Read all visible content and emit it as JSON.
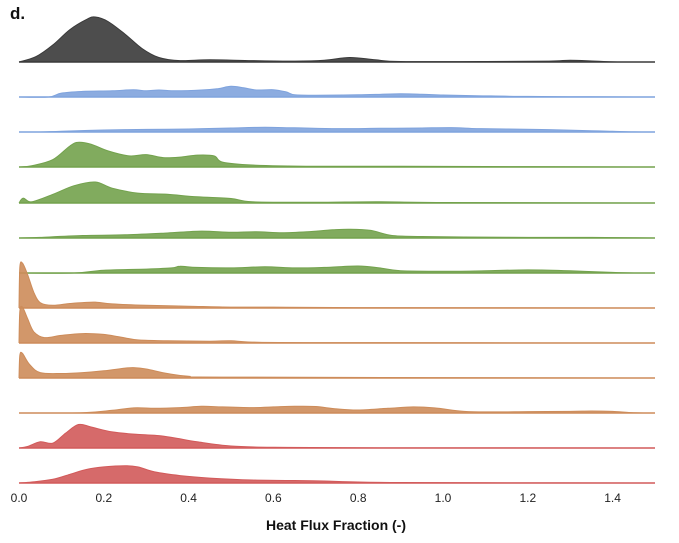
{
  "panel_label": "d.",
  "chart_data": {
    "type": "area",
    "chart_kind": "ridgeline density plot",
    "title": "",
    "xlabel": "Heat Flux Fraction (-)",
    "ylabel": "",
    "xlim": [
      0.0,
      1.5
    ],
    "xticks": [
      0.0,
      0.2,
      0.4,
      0.6,
      0.8,
      1.0,
      1.2,
      1.4
    ],
    "xtick_labels": [
      "0.0",
      "0.2",
      "0.4",
      "0.6",
      "0.8",
      "1.0",
      "1.2",
      "1.4"
    ],
    "grid": false,
    "legend": "none",
    "series": [
      {
        "color": "#3a3a3a",
        "peak": 1.0,
        "points": [
          [
            0.0,
            0.0
          ],
          [
            0.04,
            0.12
          ],
          [
            0.08,
            0.38
          ],
          [
            0.12,
            0.72
          ],
          [
            0.16,
            0.95
          ],
          [
            0.18,
            1.0
          ],
          [
            0.21,
            0.9
          ],
          [
            0.25,
            0.62
          ],
          [
            0.29,
            0.3
          ],
          [
            0.33,
            0.1
          ],
          [
            0.38,
            0.03
          ],
          [
            0.45,
            0.05
          ],
          [
            0.55,
            0.03
          ],
          [
            0.65,
            0.02
          ],
          [
            0.72,
            0.04
          ],
          [
            0.78,
            0.1
          ],
          [
            0.84,
            0.05
          ],
          [
            0.9,
            0.01
          ],
          [
            1.1,
            0.01
          ],
          [
            1.25,
            0.02
          ],
          [
            1.3,
            0.04
          ],
          [
            1.36,
            0.02
          ],
          [
            1.42,
            0.0
          ]
        ]
      },
      {
        "color": "#7fa3dd",
        "peak": 0.25,
        "points": [
          [
            0.0,
            0.0
          ],
          [
            0.07,
            0.0
          ],
          [
            0.1,
            0.35
          ],
          [
            0.15,
            0.5
          ],
          [
            0.22,
            0.55
          ],
          [
            0.27,
            0.65
          ],
          [
            0.3,
            0.55
          ],
          [
            0.33,
            0.62
          ],
          [
            0.37,
            0.55
          ],
          [
            0.43,
            0.62
          ],
          [
            0.47,
            0.75
          ],
          [
            0.5,
            0.95
          ],
          [
            0.53,
            0.82
          ],
          [
            0.56,
            0.62
          ],
          [
            0.6,
            0.65
          ],
          [
            0.63,
            0.45
          ],
          [
            0.65,
            0.2
          ],
          [
            0.7,
            0.15
          ],
          [
            0.8,
            0.2
          ],
          [
            0.9,
            0.28
          ],
          [
            0.95,
            0.25
          ],
          [
            1.0,
            0.18
          ],
          [
            1.08,
            0.12
          ],
          [
            1.2,
            0.05
          ],
          [
            1.35,
            0.02
          ],
          [
            1.5,
            0.0
          ]
        ]
      },
      {
        "color": "#7fa3dd",
        "peak": 0.15,
        "points": [
          [
            0.0,
            0.0
          ],
          [
            0.05,
            0.0
          ],
          [
            0.1,
            0.12
          ],
          [
            0.2,
            0.3
          ],
          [
            0.3,
            0.38
          ],
          [
            0.4,
            0.45
          ],
          [
            0.5,
            0.6
          ],
          [
            0.58,
            0.7
          ],
          [
            0.65,
            0.62
          ],
          [
            0.75,
            0.5
          ],
          [
            0.85,
            0.55
          ],
          [
            0.95,
            0.6
          ],
          [
            1.02,
            0.65
          ],
          [
            1.08,
            0.5
          ],
          [
            1.15,
            0.45
          ],
          [
            1.25,
            0.35
          ],
          [
            1.35,
            0.2
          ],
          [
            1.4,
            0.1
          ],
          [
            1.45,
            0.02
          ],
          [
            1.5,
            0.0
          ]
        ]
      },
      {
        "color": "#73a24d",
        "peak": 0.55,
        "points": [
          [
            0.0,
            0.0
          ],
          [
            0.03,
            0.05
          ],
          [
            0.08,
            0.3
          ],
          [
            0.12,
            0.85
          ],
          [
            0.14,
            1.0
          ],
          [
            0.17,
            0.92
          ],
          [
            0.21,
            0.65
          ],
          [
            0.26,
            0.45
          ],
          [
            0.3,
            0.5
          ],
          [
            0.34,
            0.38
          ],
          [
            0.38,
            0.4
          ],
          [
            0.42,
            0.48
          ],
          [
            0.46,
            0.45
          ],
          [
            0.48,
            0.2
          ],
          [
            0.55,
            0.08
          ],
          [
            0.7,
            0.03
          ],
          [
            0.9,
            0.03
          ],
          [
            1.1,
            0.02
          ],
          [
            1.3,
            0.01
          ],
          [
            1.5,
            0.0
          ]
        ]
      },
      {
        "color": "#73a24d",
        "peak": 0.55,
        "points": [
          [
            0.0,
            0.0
          ],
          [
            0.01,
            0.2
          ],
          [
            0.03,
            0.05
          ],
          [
            0.08,
            0.35
          ],
          [
            0.13,
            0.7
          ],
          [
            0.18,
            0.85
          ],
          [
            0.22,
            0.6
          ],
          [
            0.28,
            0.4
          ],
          [
            0.35,
            0.35
          ],
          [
            0.42,
            0.25
          ],
          [
            0.5,
            0.18
          ],
          [
            0.55,
            0.05
          ],
          [
            0.7,
            0.03
          ],
          [
            0.85,
            0.05
          ],
          [
            1.0,
            0.02
          ],
          [
            1.5,
            0.0
          ]
        ]
      },
      {
        "color": "#73a24d",
        "peak": 0.28,
        "points": [
          [
            0.0,
            0.0
          ],
          [
            0.05,
            0.05
          ],
          [
            0.15,
            0.2
          ],
          [
            0.25,
            0.25
          ],
          [
            0.35,
            0.4
          ],
          [
            0.43,
            0.55
          ],
          [
            0.5,
            0.45
          ],
          [
            0.56,
            0.5
          ],
          [
            0.62,
            0.42
          ],
          [
            0.68,
            0.5
          ],
          [
            0.74,
            0.65
          ],
          [
            0.78,
            0.7
          ],
          [
            0.83,
            0.6
          ],
          [
            0.88,
            0.2
          ],
          [
            0.95,
            0.12
          ],
          [
            1.05,
            0.08
          ],
          [
            1.2,
            0.05
          ],
          [
            1.35,
            0.05
          ],
          [
            1.45,
            0.02
          ],
          [
            1.5,
            0.0
          ]
        ]
      },
      {
        "color": "#73a24d",
        "peak": 0.25,
        "points": [
          [
            0.0,
            0.0
          ],
          [
            0.13,
            0.0
          ],
          [
            0.2,
            0.25
          ],
          [
            0.3,
            0.35
          ],
          [
            0.36,
            0.45
          ],
          [
            0.38,
            0.6
          ],
          [
            0.42,
            0.5
          ],
          [
            0.5,
            0.45
          ],
          [
            0.58,
            0.55
          ],
          [
            0.65,
            0.45
          ],
          [
            0.72,
            0.5
          ],
          [
            0.8,
            0.62
          ],
          [
            0.85,
            0.45
          ],
          [
            0.9,
            0.2
          ],
          [
            1.0,
            0.15
          ],
          [
            1.1,
            0.2
          ],
          [
            1.2,
            0.28
          ],
          [
            1.3,
            0.2
          ],
          [
            1.4,
            0.05
          ],
          [
            1.45,
            0.0
          ],
          [
            1.5,
            0.0
          ]
        ]
      },
      {
        "color": "#cd8c5a",
        "peak": 1.0,
        "points": [
          [
            0.0,
            0.0
          ],
          [
            0.002,
            0.9
          ],
          [
            0.008,
            1.0
          ],
          [
            0.02,
            0.75
          ],
          [
            0.035,
            0.35
          ],
          [
            0.05,
            0.12
          ],
          [
            0.08,
            0.06
          ],
          [
            0.12,
            0.1
          ],
          [
            0.15,
            0.12
          ],
          [
            0.18,
            0.13
          ],
          [
            0.22,
            0.09
          ],
          [
            0.3,
            0.06
          ],
          [
            0.4,
            0.04
          ],
          [
            0.5,
            0.02
          ],
          [
            0.6,
            0.02
          ],
          [
            0.8,
            0.01
          ],
          [
            1.5,
            0.0
          ]
        ]
      },
      {
        "color": "#cd8c5a",
        "peak": 1.0,
        "points": [
          [
            0.0,
            0.0
          ],
          [
            0.002,
            0.7
          ],
          [
            0.008,
            0.8
          ],
          [
            0.02,
            0.55
          ],
          [
            0.035,
            0.25
          ],
          [
            0.06,
            0.12
          ],
          [
            0.1,
            0.17
          ],
          [
            0.15,
            0.21
          ],
          [
            0.2,
            0.19
          ],
          [
            0.24,
            0.13
          ],
          [
            0.28,
            0.07
          ],
          [
            0.35,
            0.05
          ],
          [
            0.45,
            0.04
          ],
          [
            0.5,
            0.05
          ],
          [
            0.55,
            0.02
          ],
          [
            0.7,
            0.01
          ],
          [
            1.5,
            0.0
          ]
        ]
      },
      {
        "color": "#cd8c5a",
        "peak": 1.0,
        "points": [
          [
            0.0,
            0.0
          ],
          [
            0.002,
            0.5
          ],
          [
            0.008,
            0.55
          ],
          [
            0.025,
            0.3
          ],
          [
            0.05,
            0.12
          ],
          [
            0.1,
            0.1
          ],
          [
            0.15,
            0.12
          ],
          [
            0.2,
            0.16
          ],
          [
            0.25,
            0.22
          ],
          [
            0.27,
            0.23
          ],
          [
            0.3,
            0.2
          ],
          [
            0.35,
            0.1
          ],
          [
            0.4,
            0.04
          ],
          [
            0.5,
            0.02
          ],
          [
            1.5,
            0.0
          ]
        ]
      },
      {
        "color": "#cd8c5a",
        "peak": 0.3,
        "points": [
          [
            0.0,
            0.0
          ],
          [
            0.15,
            0.02
          ],
          [
            0.22,
            0.2
          ],
          [
            0.27,
            0.38
          ],
          [
            0.32,
            0.35
          ],
          [
            0.38,
            0.4
          ],
          [
            0.43,
            0.5
          ],
          [
            0.48,
            0.45
          ],
          [
            0.55,
            0.4
          ],
          [
            0.6,
            0.45
          ],
          [
            0.65,
            0.5
          ],
          [
            0.7,
            0.48
          ],
          [
            0.75,
            0.3
          ],
          [
            0.8,
            0.22
          ],
          [
            0.87,
            0.35
          ],
          [
            0.93,
            0.45
          ],
          [
            0.98,
            0.38
          ],
          [
            1.05,
            0.12
          ],
          [
            1.12,
            0.08
          ],
          [
            1.2,
            0.1
          ],
          [
            1.3,
            0.12
          ],
          [
            1.35,
            0.15
          ],
          [
            1.4,
            0.12
          ],
          [
            1.45,
            0.02
          ],
          [
            1.5,
            0.0
          ]
        ]
      },
      {
        "color": "#d25a5a",
        "peak": 0.55,
        "points": [
          [
            0.0,
            0.0
          ],
          [
            0.02,
            0.06
          ],
          [
            0.05,
            0.25
          ],
          [
            0.08,
            0.2
          ],
          [
            0.11,
            0.6
          ],
          [
            0.14,
            0.95
          ],
          [
            0.17,
            0.85
          ],
          [
            0.22,
            0.65
          ],
          [
            0.28,
            0.55
          ],
          [
            0.33,
            0.5
          ],
          [
            0.37,
            0.4
          ],
          [
            0.42,
            0.25
          ],
          [
            0.5,
            0.08
          ],
          [
            0.6,
            0.03
          ],
          [
            0.8,
            0.01
          ],
          [
            1.5,
            0.0
          ]
        ]
      },
      {
        "color": "#d25a5a",
        "peak": 0.55,
        "points": [
          [
            0.0,
            0.0
          ],
          [
            0.03,
            0.04
          ],
          [
            0.08,
            0.15
          ],
          [
            0.12,
            0.35
          ],
          [
            0.16,
            0.55
          ],
          [
            0.2,
            0.65
          ],
          [
            0.25,
            0.7
          ],
          [
            0.28,
            0.65
          ],
          [
            0.32,
            0.45
          ],
          [
            0.38,
            0.3
          ],
          [
            0.45,
            0.2
          ],
          [
            0.55,
            0.12
          ],
          [
            0.65,
            0.1
          ],
          [
            0.72,
            0.08
          ],
          [
            0.8,
            0.04
          ],
          [
            0.9,
            0.02
          ],
          [
            1.1,
            0.01
          ],
          [
            1.5,
            0.0
          ]
        ]
      }
    ]
  }
}
